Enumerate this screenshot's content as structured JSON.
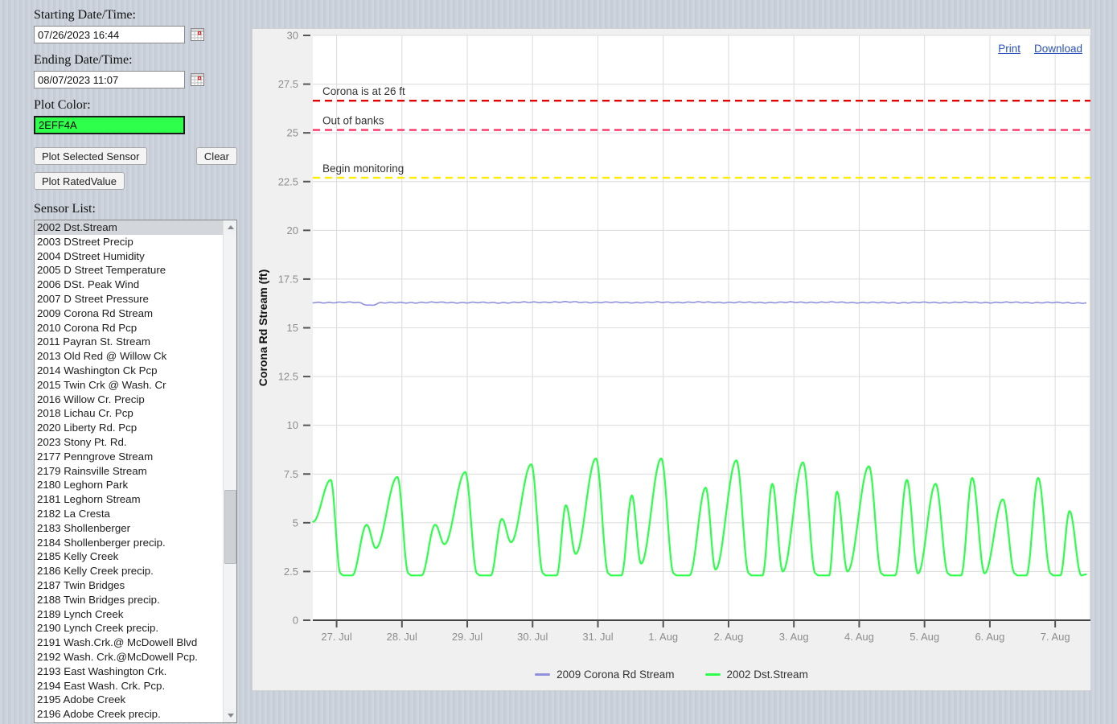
{
  "controls": {
    "start_label": "Starting Date/Time:",
    "start_value": "07/26/2023 16:44",
    "end_label": "Ending Date/Time:",
    "end_value": "08/07/2023 11:07",
    "plot_color_label": "Plot Color:",
    "plot_color_value": "2EFF4A",
    "plot_color_hex": "#2EFF4A",
    "plot_button": "Plot Selected Sensor",
    "clear_button": "Clear",
    "rated_button": "Plot RatedValue",
    "sensor_list_label": "Sensor List:",
    "selected_sensor_index": 0,
    "sensors": [
      "2002 Dst.Stream",
      "2003 DStreet Precip",
      "2004 DStreet Humidity",
      "2005 D Street Temperature",
      "2006 DSt. Peak Wind",
      "2007 D Street Pressure",
      "2009 Corona Rd Stream",
      "2010 Corona Rd Pcp",
      "2011 Payran St. Stream",
      "2013 Old Red @ Willow Ck",
      "2014 Washington Ck Pcp",
      "2015 Twin Crk @ Wash. Cr",
      "2016 Willow Cr. Precip",
      "2018 Lichau Cr. Pcp",
      "2020 Liberty Rd. Pcp",
      "2023 Stony Pt. Rd.",
      "2177 Penngrove Stream",
      "2179 Rainsville Stream",
      "2180 Leghorn Park",
      "2181 Leghorn Stream",
      "2182 La Cresta",
      "2183 Shollenberger",
      "2184 Shollenberger precip.",
      "2185 Kelly Creek",
      "2186 Kelly Creek precip.",
      "2187 Twin Bridges",
      "2188 Twin Bridges precip.",
      "2189 Lynch Creek",
      "2190 Lynch Creek precip.",
      "2191 Wash.Crk.@ McDowell Blvd",
      "2192 Wash. Crk.@McDowell Pcp.",
      "2193 East Washington Crk.",
      "2194 East Wash. Crk. Pcp.",
      "2195 Adobe Creek",
      "2196 Adobe Creek precip."
    ]
  },
  "chart_links": {
    "print": "Print",
    "download": "Download"
  },
  "chart_data": {
    "type": "line",
    "title": "",
    "xlabel": "",
    "ylabel": "Corona Rd Stream (ft)",
    "ylim": [
      0,
      30
    ],
    "ytick_labels": [
      "0",
      "2.5",
      "5",
      "7.5",
      "10",
      "12.5",
      "15",
      "17.5",
      "20",
      "22.5",
      "25",
      "27.5",
      "30"
    ],
    "ytick_values": [
      0,
      2.5,
      5,
      7.5,
      10,
      12.5,
      15,
      17.5,
      20,
      22.5,
      25,
      27.5,
      30
    ],
    "xtick_labels": [
      "27. Jul",
      "28. Jul",
      "29. Jul",
      "30. Jul",
      "31. Jul",
      "1. Aug",
      "2. Aug",
      "3. Aug",
      "4. Aug",
      "5. Aug",
      "6. Aug",
      "7. Aug"
    ],
    "xtick_days": [
      0,
      1,
      2,
      3,
      4,
      5,
      6,
      7,
      8,
      9,
      10,
      11
    ],
    "x_domain_days": [
      -0.364,
      11.54
    ],
    "x_unit": "days relative to 2023-07-27 00:00",
    "grid": true,
    "legend_position": "bottom",
    "thresholds": [
      {
        "label": "Corona is at 26 ft",
        "value": 26.65,
        "color": "#e60000"
      },
      {
        "label": "Out of banks",
        "value": 25.15,
        "color": "#ff3366"
      },
      {
        "label": "Begin monitoring",
        "value": 22.7,
        "color": "#ffee00"
      }
    ],
    "series": [
      {
        "name": "2009 Corona Rd Stream",
        "color": "#9090dd",
        "width": 1.6,
        "jitter": [
          0.018,
          0.012
        ],
        "keypoints": [
          [
            -0.36,
            16.3
          ],
          [
            0.3,
            16.3
          ],
          [
            0.52,
            16.16
          ],
          [
            0.68,
            16.28
          ],
          [
            1.4,
            16.3
          ],
          [
            2.4,
            16.29
          ],
          [
            3.4,
            16.32
          ],
          [
            4.4,
            16.3
          ],
          [
            5.4,
            16.31
          ],
          [
            6.4,
            16.3
          ],
          [
            7.4,
            16.31
          ],
          [
            8.4,
            16.29
          ],
          [
            9.4,
            16.3
          ],
          [
            10.4,
            16.3
          ],
          [
            11.47,
            16.28
          ]
        ]
      },
      {
        "name": "2002 Dst.Stream",
        "color": "#2EFF4A",
        "width": 2.2,
        "jitter": [
          0,
          0
        ],
        "keypoints": [
          [
            -0.36,
            5.05
          ],
          [
            -0.09,
            7.2
          ],
          [
            0.06,
            2.4
          ],
          [
            0.1,
            2.3
          ],
          [
            0.24,
            2.3
          ],
          [
            0.46,
            4.9
          ],
          [
            0.6,
            3.7
          ],
          [
            0.93,
            7.35
          ],
          [
            1.1,
            2.4
          ],
          [
            1.14,
            2.3
          ],
          [
            1.3,
            2.3
          ],
          [
            1.51,
            4.9
          ],
          [
            1.65,
            3.9
          ],
          [
            1.97,
            7.6
          ],
          [
            2.15,
            2.4
          ],
          [
            2.19,
            2.3
          ],
          [
            2.36,
            2.3
          ],
          [
            2.53,
            5.2
          ],
          [
            2.67,
            4.0
          ],
          [
            2.98,
            8.0
          ],
          [
            3.16,
            2.4
          ],
          [
            3.2,
            2.3
          ],
          [
            3.37,
            2.3
          ],
          [
            3.51,
            5.9
          ],
          [
            3.66,
            3.4
          ],
          [
            3.97,
            8.3
          ],
          [
            4.16,
            2.4
          ],
          [
            4.2,
            2.3
          ],
          [
            4.36,
            2.3
          ],
          [
            4.52,
            6.4
          ],
          [
            4.66,
            2.9
          ],
          [
            4.97,
            8.3
          ],
          [
            5.16,
            2.4
          ],
          [
            5.2,
            2.3
          ],
          [
            5.4,
            2.3
          ],
          [
            5.65,
            6.8
          ],
          [
            5.8,
            2.6
          ],
          [
            6.12,
            8.2
          ],
          [
            6.31,
            2.4
          ],
          [
            6.35,
            2.3
          ],
          [
            6.52,
            2.3
          ],
          [
            6.67,
            7.0
          ],
          [
            6.83,
            2.5
          ],
          [
            7.14,
            8.1
          ],
          [
            7.33,
            2.4
          ],
          [
            7.37,
            2.3
          ],
          [
            7.54,
            2.3
          ],
          [
            7.66,
            6.6
          ],
          [
            7.82,
            2.5
          ],
          [
            8.15,
            7.9
          ],
          [
            8.34,
            2.4
          ],
          [
            8.38,
            2.3
          ],
          [
            8.55,
            2.3
          ],
          [
            8.73,
            7.2
          ],
          [
            8.9,
            2.4
          ],
          [
            9.17,
            7.0
          ],
          [
            9.36,
            2.4
          ],
          [
            9.4,
            2.3
          ],
          [
            9.56,
            2.3
          ],
          [
            9.73,
            7.3
          ],
          [
            9.92,
            2.4
          ],
          [
            10.2,
            6.2
          ],
          [
            10.38,
            2.4
          ],
          [
            10.42,
            2.3
          ],
          [
            10.56,
            2.3
          ],
          [
            10.74,
            7.3
          ],
          [
            10.93,
            2.4
          ],
          [
            10.97,
            2.3
          ],
          [
            11.08,
            2.3
          ],
          [
            11.22,
            5.6
          ],
          [
            11.4,
            2.3
          ],
          [
            11.47,
            2.35
          ]
        ]
      }
    ]
  },
  "colors": {
    "grid": "#dcdcdc",
    "axis": "#444444",
    "tick_label": "#8d8d8d",
    "threshold_label": "#333333"
  }
}
